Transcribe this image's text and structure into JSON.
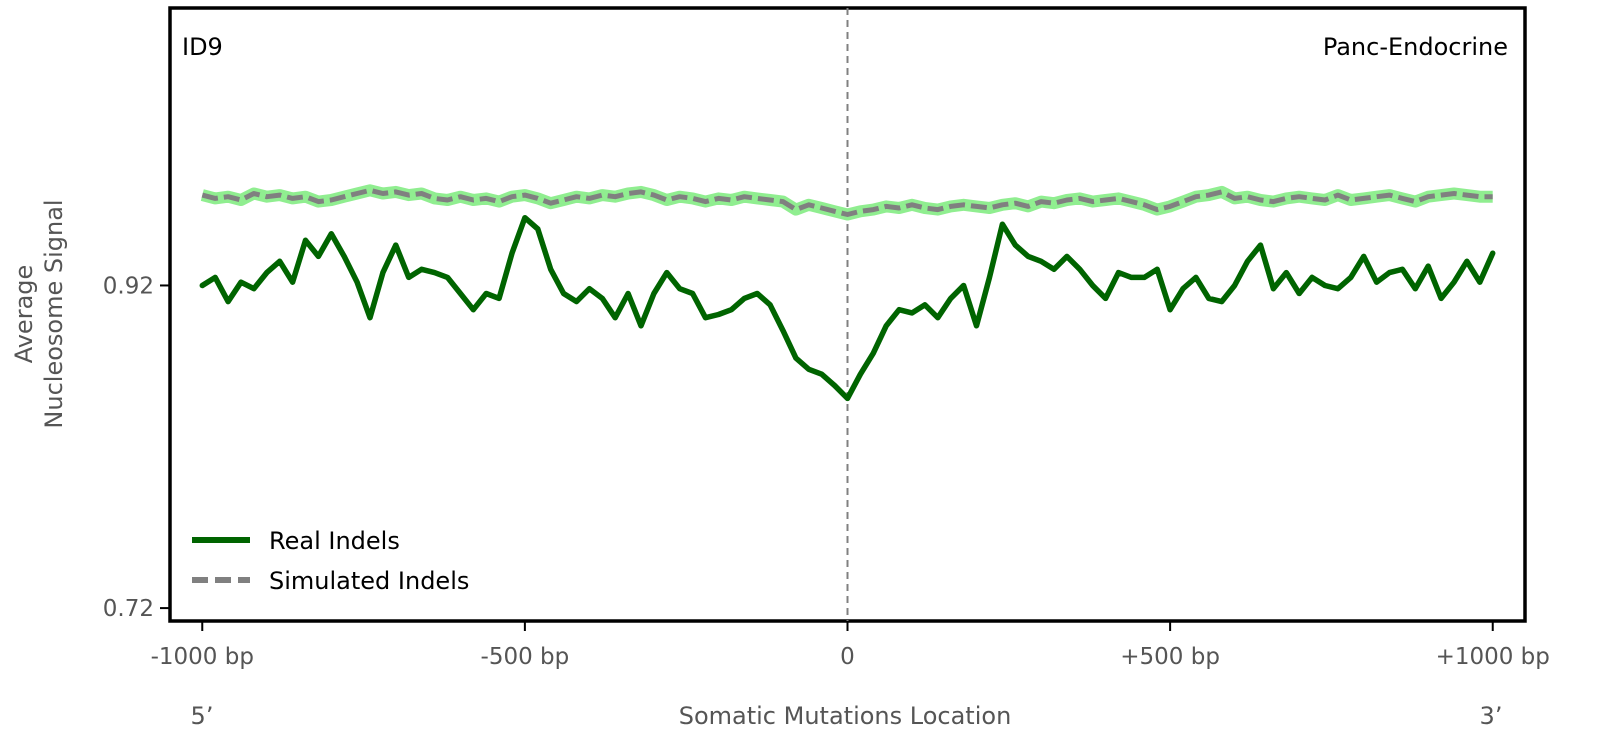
{
  "chart_data": {
    "type": "line",
    "signature_label": "ID9",
    "tissue_label": "Panc-Endocrine",
    "xlabel": "Somatic Mutations Location",
    "ylabel_line1": "Average",
    "ylabel_line2": "Nucleosome Signal",
    "five_prime_label": "5’",
    "three_prime_label": "3’",
    "xlim": [
      -1050,
      1050
    ],
    "ylim": [
      0.712,
      1.092
    ],
    "x_ticks": [
      {
        "value": -1000,
        "label": "-1000 bp"
      },
      {
        "value": -500,
        "label": "-500 bp"
      },
      {
        "value": 0,
        "label": "0"
      },
      {
        "value": 500,
        "label": "+500 bp"
      },
      {
        "value": 1000,
        "label": "+1000 bp"
      }
    ],
    "y_ticks": [
      {
        "value": 0.92,
        "label": "0.92"
      },
      {
        "value": 0.72,
        "label": "0.72"
      }
    ],
    "center_line": {
      "x": 0,
      "style": "dashed",
      "color": "#808080"
    },
    "legend": {
      "placement": "lower-left",
      "entries": [
        {
          "label": "Real Indels",
          "color": "#006400",
          "style": "solid"
        },
        {
          "label": "Simulated Indels",
          "color": "#808080",
          "style": "dashed"
        }
      ]
    },
    "series": [
      {
        "name": "Real Indels",
        "color": "#006400",
        "style": "solid",
        "x": [
          -1000,
          -980,
          -960,
          -940,
          -920,
          -900,
          -880,
          -860,
          -840,
          -820,
          -800,
          -780,
          -760,
          -740,
          -720,
          -700,
          -680,
          -660,
          -640,
          -620,
          -600,
          -580,
          -560,
          -540,
          -520,
          -500,
          -480,
          -460,
          -440,
          -420,
          -400,
          -380,
          -360,
          -340,
          -320,
          -300,
          -280,
          -260,
          -240,
          -220,
          -200,
          -180,
          -160,
          -140,
          -120,
          -100,
          -80,
          -60,
          -40,
          -20,
          0,
          20,
          40,
          60,
          80,
          100,
          120,
          140,
          160,
          180,
          200,
          220,
          240,
          260,
          280,
          300,
          320,
          340,
          360,
          380,
          400,
          420,
          440,
          460,
          480,
          500,
          520,
          540,
          560,
          580,
          600,
          620,
          640,
          660,
          680,
          700,
          720,
          740,
          760,
          780,
          800,
          820,
          840,
          860,
          880,
          900,
          920,
          940,
          960,
          980,
          1000
        ],
        "y": [
          0.92,
          0.925,
          0.91,
          0.922,
          0.918,
          0.928,
          0.935,
          0.922,
          0.948,
          0.938,
          0.952,
          0.938,
          0.922,
          0.9,
          0.928,
          0.945,
          0.925,
          0.93,
          0.928,
          0.925,
          0.915,
          0.905,
          0.915,
          0.912,
          0.94,
          0.962,
          0.955,
          0.93,
          0.915,
          0.91,
          0.918,
          0.912,
          0.9,
          0.915,
          0.895,
          0.915,
          0.928,
          0.918,
          0.915,
          0.9,
          0.902,
          0.905,
          0.912,
          0.915,
          0.908,
          0.892,
          0.875,
          0.868,
          0.865,
          0.858,
          0.85,
          0.865,
          0.878,
          0.895,
          0.905,
          0.903,
          0.908,
          0.9,
          0.912,
          0.92,
          0.895,
          0.925,
          0.958,
          0.945,
          0.938,
          0.935,
          0.93,
          0.938,
          0.93,
          0.92,
          0.912,
          0.928,
          0.925,
          0.925,
          0.93,
          0.905,
          0.918,
          0.925,
          0.912,
          0.91,
          0.92,
          0.935,
          0.945,
          0.918,
          0.928,
          0.915,
          0.925,
          0.92,
          0.918,
          0.925,
          0.938,
          0.922,
          0.928,
          0.93,
          0.918,
          0.932,
          0.912,
          0.922,
          0.935,
          0.922,
          0.94
        ]
      },
      {
        "name": "Simulated Indels",
        "color": "#808080",
        "style": "dashed",
        "band_color": "#90EE90",
        "x": [
          -1000,
          -980,
          -960,
          -940,
          -920,
          -900,
          -880,
          -860,
          -840,
          -820,
          -800,
          -780,
          -760,
          -740,
          -720,
          -700,
          -680,
          -660,
          -640,
          -620,
          -600,
          -580,
          -560,
          -540,
          -520,
          -500,
          -480,
          -460,
          -440,
          -420,
          -400,
          -380,
          -360,
          -340,
          -320,
          -300,
          -280,
          -260,
          -240,
          -220,
          -200,
          -180,
          -160,
          -140,
          -120,
          -100,
          -80,
          -60,
          -40,
          -20,
          0,
          20,
          40,
          60,
          80,
          100,
          120,
          140,
          160,
          180,
          200,
          220,
          240,
          260,
          280,
          300,
          320,
          340,
          360,
          380,
          400,
          420,
          440,
          460,
          480,
          500,
          520,
          540,
          560,
          580,
          600,
          620,
          640,
          660,
          680,
          700,
          720,
          740,
          760,
          780,
          800,
          820,
          840,
          860,
          880,
          900,
          920,
          940,
          960,
          980,
          1000
        ],
        "y": [
          0.976,
          0.974,
          0.975,
          0.973,
          0.977,
          0.975,
          0.976,
          0.974,
          0.975,
          0.972,
          0.973,
          0.975,
          0.977,
          0.979,
          0.977,
          0.978,
          0.976,
          0.977,
          0.974,
          0.973,
          0.975,
          0.973,
          0.974,
          0.972,
          0.975,
          0.976,
          0.974,
          0.971,
          0.973,
          0.975,
          0.974,
          0.976,
          0.975,
          0.977,
          0.978,
          0.976,
          0.973,
          0.975,
          0.974,
          0.972,
          0.974,
          0.973,
          0.975,
          0.974,
          0.973,
          0.972,
          0.967,
          0.97,
          0.968,
          0.966,
          0.964,
          0.966,
          0.967,
          0.969,
          0.968,
          0.97,
          0.968,
          0.967,
          0.969,
          0.97,
          0.969,
          0.968,
          0.97,
          0.971,
          0.969,
          0.972,
          0.971,
          0.973,
          0.974,
          0.972,
          0.973,
          0.974,
          0.972,
          0.97,
          0.967,
          0.969,
          0.972,
          0.975,
          0.976,
          0.978,
          0.974,
          0.975,
          0.973,
          0.972,
          0.974,
          0.975,
          0.974,
          0.973,
          0.976,
          0.973,
          0.974,
          0.975,
          0.976,
          0.974,
          0.972,
          0.975,
          0.976,
          0.977,
          0.976,
          0.975,
          0.975
        ]
      }
    ]
  }
}
